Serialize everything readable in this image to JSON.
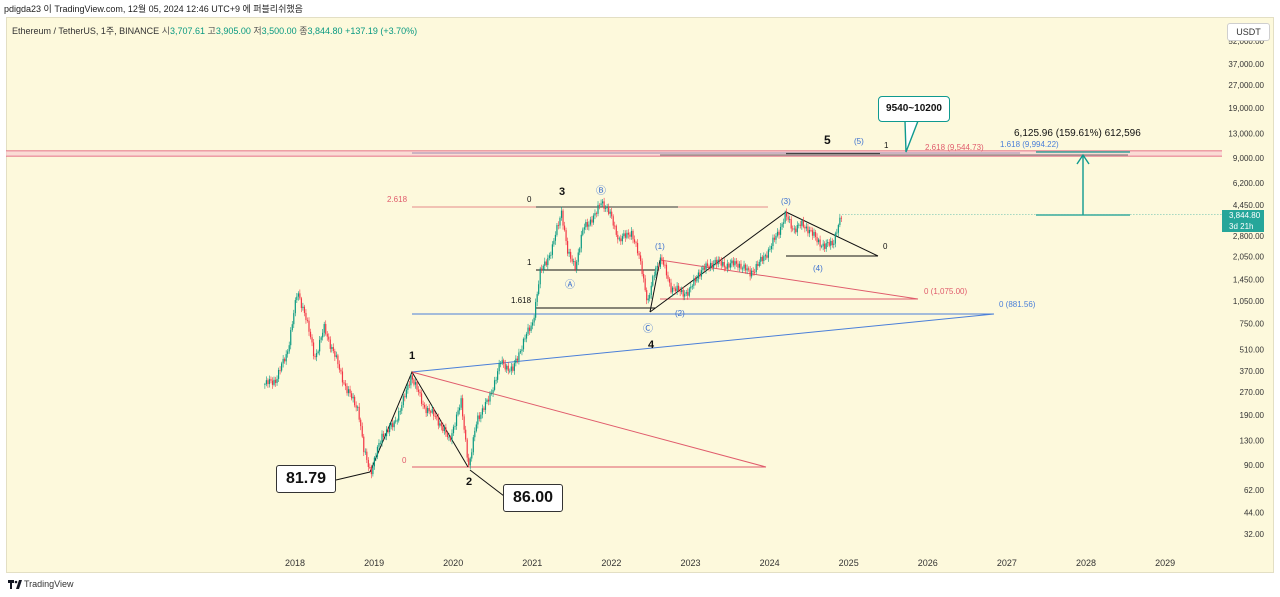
{
  "header": {
    "watermark_line": "pdigda23 이 TradingView.com, 12월 05, 2024 12:46 UTC+9 에 퍼블리쉬했음",
    "symbol": "Ethereum / TetherUS, 1주, BINANCE",
    "open_label": "시",
    "open_value": "3,707.61",
    "high_label": "고",
    "high_value": "3,905.00",
    "low_label": "저",
    "low_value": "3,500.00",
    "close_label": "종",
    "close_value": "3,844.80",
    "change": "+137.19 (+3.70%)",
    "currency_button": "USDT"
  },
  "footer": {
    "brand": "TradingView"
  },
  "colors": {
    "background": "#fdf9dc",
    "candle_up": "#089981",
    "candle_down": "#f23645",
    "fib_red": "#e05c6c",
    "fib_blue": "#4a7fd9",
    "annotation_black": "#111111",
    "arrow_teal": "#0f9a8f"
  },
  "chart_data": {
    "type": "candlestick",
    "symbol": "ETHUSDT",
    "timeframe": "1W",
    "y_scale": "log",
    "ylim": [
      28,
      62000
    ],
    "xlim": [
      2017.2,
      2029.6
    ],
    "y_ticks": [
      32,
      44,
      62,
      90,
      130,
      190,
      270,
      370,
      510,
      750,
      1050,
      1450,
      2050,
      2800,
      4450,
      6200,
      9000,
      13000,
      19000,
      27000,
      37000,
      52000
    ],
    "y_tick_labels": [
      "32.00",
      "44.00",
      "62.00",
      "90.00",
      "130.00",
      "190.00",
      "270.00",
      "370.00",
      "510.00",
      "750.00",
      "1,050.00",
      "1,450.00",
      "2,050.00",
      "2,800.00",
      "4,450.00",
      "6,200.00",
      "9,000.00",
      "13,000.00",
      "19,000.00",
      "27,000.00",
      "37,000.00",
      "52,000.00"
    ],
    "x_ticks": [
      2018,
      2019,
      2020,
      2021,
      2022,
      2023,
      2024,
      2025,
      2026,
      2027,
      2028,
      2029
    ],
    "x_tick_labels": [
      "2018",
      "2019",
      "2020",
      "2021",
      "2022",
      "2023",
      "2024",
      "2025",
      "2026",
      "2027",
      "2028",
      "2029"
    ],
    "price_anchors": [
      [
        2017.6,
        300
      ],
      [
        2017.75,
        320
      ],
      [
        2017.9,
        480
      ],
      [
        2018.03,
        1200
      ],
      [
        2018.12,
        900
      ],
      [
        2018.25,
        450
      ],
      [
        2018.37,
        700
      ],
      [
        2018.5,
        470
      ],
      [
        2018.65,
        280
      ],
      [
        2018.8,
        210
      ],
      [
        2018.87,
        110
      ],
      [
        2018.96,
        81.79
      ],
      [
        2019.1,
        140
      ],
      [
        2019.25,
        165
      ],
      [
        2019.4,
        260
      ],
      [
        2019.47,
        350
      ],
      [
        2019.62,
        220
      ],
      [
        2019.8,
        180
      ],
      [
        2019.95,
        130
      ],
      [
        2020.1,
        230
      ],
      [
        2020.2,
        86
      ],
      [
        2020.3,
        180
      ],
      [
        2020.45,
        240
      ],
      [
        2020.6,
        420
      ],
      [
        2020.75,
        370
      ],
      [
        2020.9,
        600
      ],
      [
        2021.0,
        740
      ],
      [
        2021.1,
        1600
      ],
      [
        2021.25,
        2300
      ],
      [
        2021.37,
        4100
      ],
      [
        2021.45,
        2100
      ],
      [
        2021.55,
        1800
      ],
      [
        2021.65,
        3200
      ],
      [
        2021.8,
        3800
      ],
      [
        2021.87,
        4800
      ],
      [
        2022.0,
        3700
      ],
      [
        2022.1,
        2600
      ],
      [
        2022.25,
        3000
      ],
      [
        2022.38,
        1800
      ],
      [
        2022.46,
        1000
      ],
      [
        2022.55,
        1700
      ],
      [
        2022.63,
        2000
      ],
      [
        2022.75,
        1300
      ],
      [
        2022.88,
        1200
      ],
      [
        2022.98,
        1200
      ],
      [
        2023.1,
        1600
      ],
      [
        2023.3,
        1900
      ],
      [
        2023.45,
        1800
      ],
      [
        2023.6,
        1850
      ],
      [
        2023.75,
        1600
      ],
      [
        2023.85,
        1800
      ],
      [
        2024.0,
        2300
      ],
      [
        2024.1,
        2900
      ],
      [
        2024.2,
        3800
      ],
      [
        2024.3,
        3100
      ],
      [
        2024.4,
        3300
      ],
      [
        2024.5,
        3100
      ],
      [
        2024.6,
        2600
      ],
      [
        2024.7,
        2400
      ],
      [
        2024.8,
        2500
      ],
      [
        2024.85,
        3100
      ],
      [
        2024.92,
        3844.8
      ]
    ],
    "horizontal_levels": [
      {
        "label": "0 (1,075.00)",
        "value": 1075
      },
      {
        "label": "0 (881.56)",
        "value": 881.56
      },
      {
        "label": "2.618 (9,544.73)",
        "value": 9544.73
      },
      {
        "label": "1.618 (9,994.22)",
        "value": 9994.22
      }
    ],
    "wave_labels": [
      "1",
      "2",
      "3",
      "4",
      "5",
      "Ⓐ",
      "Ⓑ",
      "Ⓒ",
      "(1)",
      "(2)",
      "(3)",
      "(4)",
      "(5)"
    ],
    "callouts": [
      "81.79",
      "86.00",
      "9540~10200"
    ],
    "projection_text": "6,125.96 (159.61%) 612,596",
    "last_price": "3,844.80",
    "countdown": "3d 21h"
  }
}
